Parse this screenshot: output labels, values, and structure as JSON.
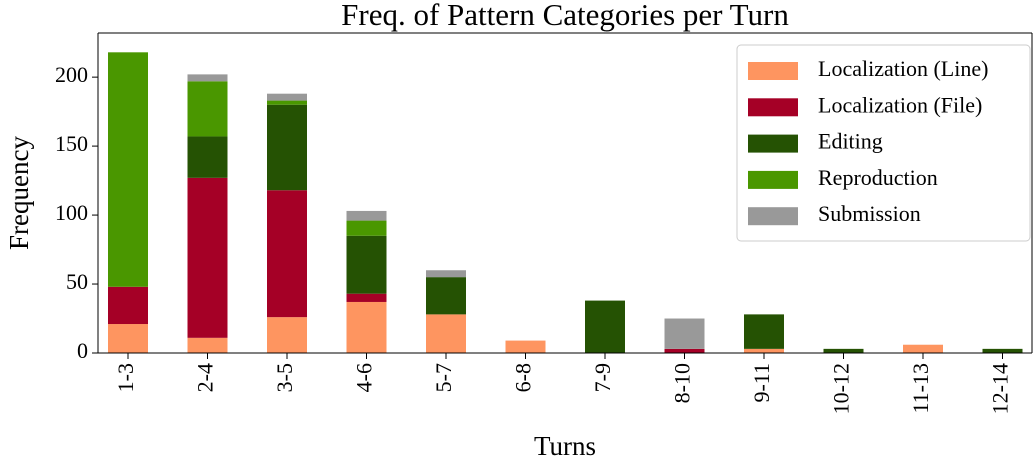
{
  "chart_data": {
    "type": "stacked_bar",
    "title": "Freq. of Pattern Categories per Turn",
    "xlabel": "Turns",
    "ylabel": "Frequency",
    "categories": [
      "1-3",
      "2-4",
      "3-5",
      "4-6",
      "5-7",
      "6-8",
      "7-9",
      "8-10",
      "9-11",
      "10-12",
      "11-13",
      "12-14"
    ],
    "series": [
      {
        "name": "Localization (Line)",
        "color": "#fe9560",
        "values": [
          21,
          11,
          26,
          37,
          28,
          9,
          0,
          0,
          3,
          0,
          6,
          0
        ]
      },
      {
        "name": "Localization (File)",
        "color": "#a50026",
        "values": [
          27,
          116,
          92,
          6,
          0,
          0,
          0,
          3,
          0,
          0,
          0,
          0
        ]
      },
      {
        "name": "Editing",
        "color": "#255203",
        "values": [
          0,
          30,
          62,
          42,
          27,
          0,
          38,
          0,
          25,
          3,
          0,
          3
        ]
      },
      {
        "name": "Reproduction",
        "color": "#4a9700",
        "values": [
          170,
          40,
          3,
          11,
          0,
          0,
          0,
          0,
          0,
          0,
          0,
          0
        ]
      },
      {
        "name": "Submission",
        "color": "#999999",
        "values": [
          0,
          5,
          5,
          7,
          5,
          0,
          0,
          22,
          0,
          0,
          0,
          0
        ]
      }
    ],
    "ylim": [
      0,
      232
    ],
    "yticks": [
      0,
      50,
      100,
      150,
      200
    ],
    "legend": "upper right"
  }
}
